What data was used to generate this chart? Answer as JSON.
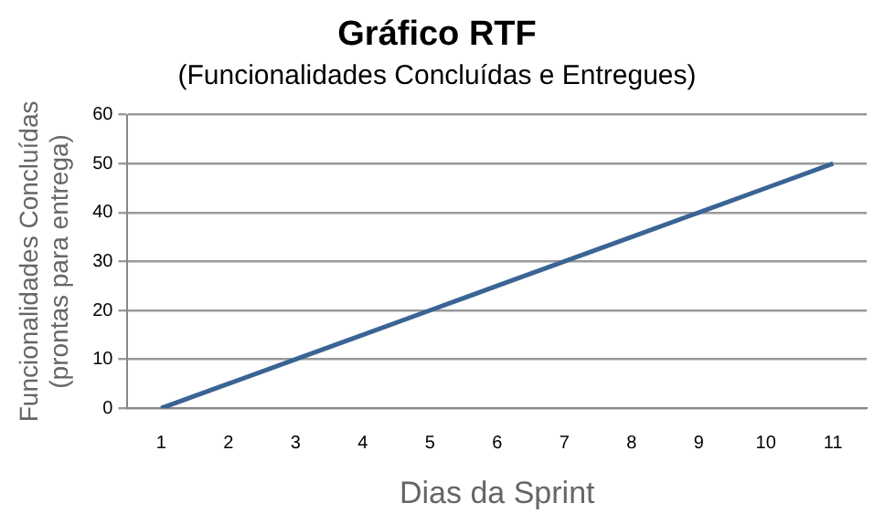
{
  "chart_data": {
    "type": "line",
    "title": "Gráfico RTF",
    "subtitle": "(Funcionalidades Concluídas e Entregues)",
    "xlabel": "Dias da Sprint",
    "ylabel": "Funcionalidades Concluídas\n(prontas para entrega)",
    "categories": [
      "1",
      "2",
      "3",
      "4",
      "5",
      "6",
      "7",
      "8",
      "9",
      "10",
      "11"
    ],
    "series": [
      {
        "color": "#3a6494",
        "values": [
          0,
          5,
          10,
          15,
          20,
          25,
          30,
          35,
          40,
          45,
          50
        ]
      }
    ],
    "ylim": [
      0,
      60
    ],
    "yticks": [
      0,
      10,
      20,
      30,
      40,
      50,
      60
    ],
    "grid": "y",
    "legend": false,
    "marker": "none",
    "line_style": "solid"
  }
}
